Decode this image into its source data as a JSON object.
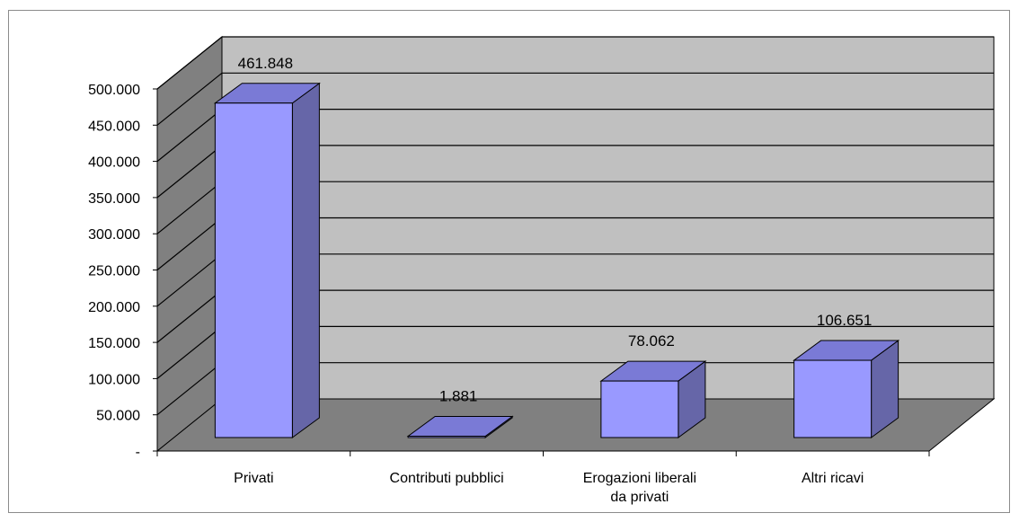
{
  "chart_data": {
    "type": "bar",
    "style": "3d-column",
    "categories": [
      "Privati",
      "Contributi pubblici",
      "Erogazioni liberali da privati",
      "Altri ricavi"
    ],
    "category_lines": [
      [
        "Privati"
      ],
      [
        "Contributi pubblici"
      ],
      [
        "Erogazioni liberali",
        "da privati"
      ],
      [
        "Altri ricavi"
      ]
    ],
    "values": [
      461848,
      1881,
      78062,
      106651
    ],
    "data_labels": [
      "461.848",
      "1.881",
      "78.062",
      "106.651"
    ],
    "ylim": [
      0,
      500000
    ],
    "yticks": [
      0,
      50000,
      100000,
      150000,
      200000,
      250000,
      300000,
      350000,
      400000,
      450000,
      500000
    ],
    "ytick_labels": [
      "-",
      "50.000",
      "100.000",
      "150.000",
      "200.000",
      "250.000",
      "300.000",
      "350.000",
      "400.000",
      "450.000",
      "500.000"
    ],
    "grid": true,
    "legend": "none",
    "title": "",
    "xlabel": "",
    "ylabel": ""
  },
  "colors": {
    "bar_front": "#9999ff",
    "bar_top": "#7a7ad6",
    "bar_side": "#6666a8",
    "wall_back": "#c0c0c0",
    "wall_side": "#808080",
    "floor": "#808080",
    "gridline": "#000000"
  }
}
